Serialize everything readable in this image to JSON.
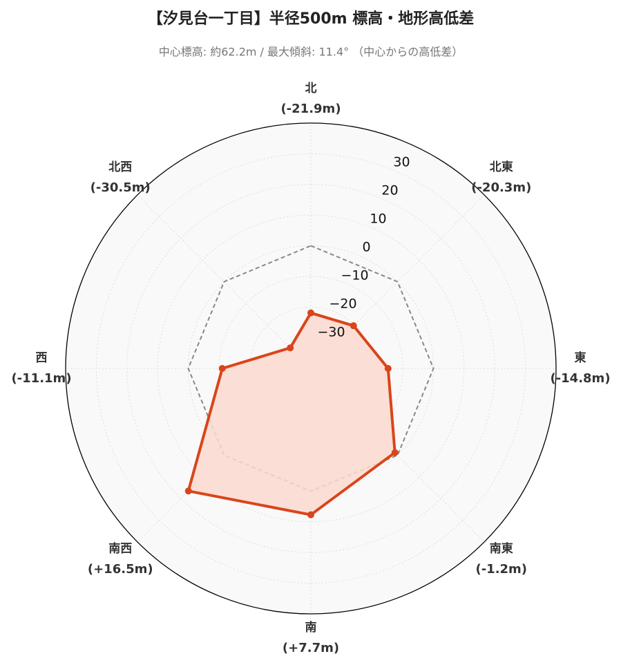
{
  "chart_data": {
    "type": "radar",
    "title": "【汐見台一丁目】半径500m 標高・地形高低差",
    "subtitle": "中心標高: 約62.2m / 最大傾斜: 11.4° （中心からの高低差）",
    "categories": [
      "北",
      "北東",
      "東",
      "南東",
      "南",
      "南西",
      "西",
      "北西"
    ],
    "series": [
      {
        "color": "#888888",
        "dashed": true,
        "values": [
          0,
          0,
          0,
          0,
          0,
          0,
          0,
          0
        ]
      },
      {
        "color": "#d9451a",
        "fill": "#fbd9cf",
        "values": [
          -21.9,
          -20.3,
          -14.8,
          -1.2,
          7.7,
          16.5,
          -11.1,
          -30.5
        ],
        "value_labels": [
          "(-21.9m)",
          "(-20.3m)",
          "(-14.8m)",
          "(-1.2m)",
          "(+7.7m)",
          "(+16.5m)",
          "(-11.1m)",
          "(-30.5m)"
        ]
      }
    ],
    "rlim": [
      -40,
      40
    ],
    "rticks": [
      {
        "value": -30,
        "label": "−30"
      },
      {
        "value": -20,
        "label": "−20"
      },
      {
        "value": -10,
        "label": "−10"
      },
      0,
      10,
      20,
      30
    ],
    "grid": true
  }
}
